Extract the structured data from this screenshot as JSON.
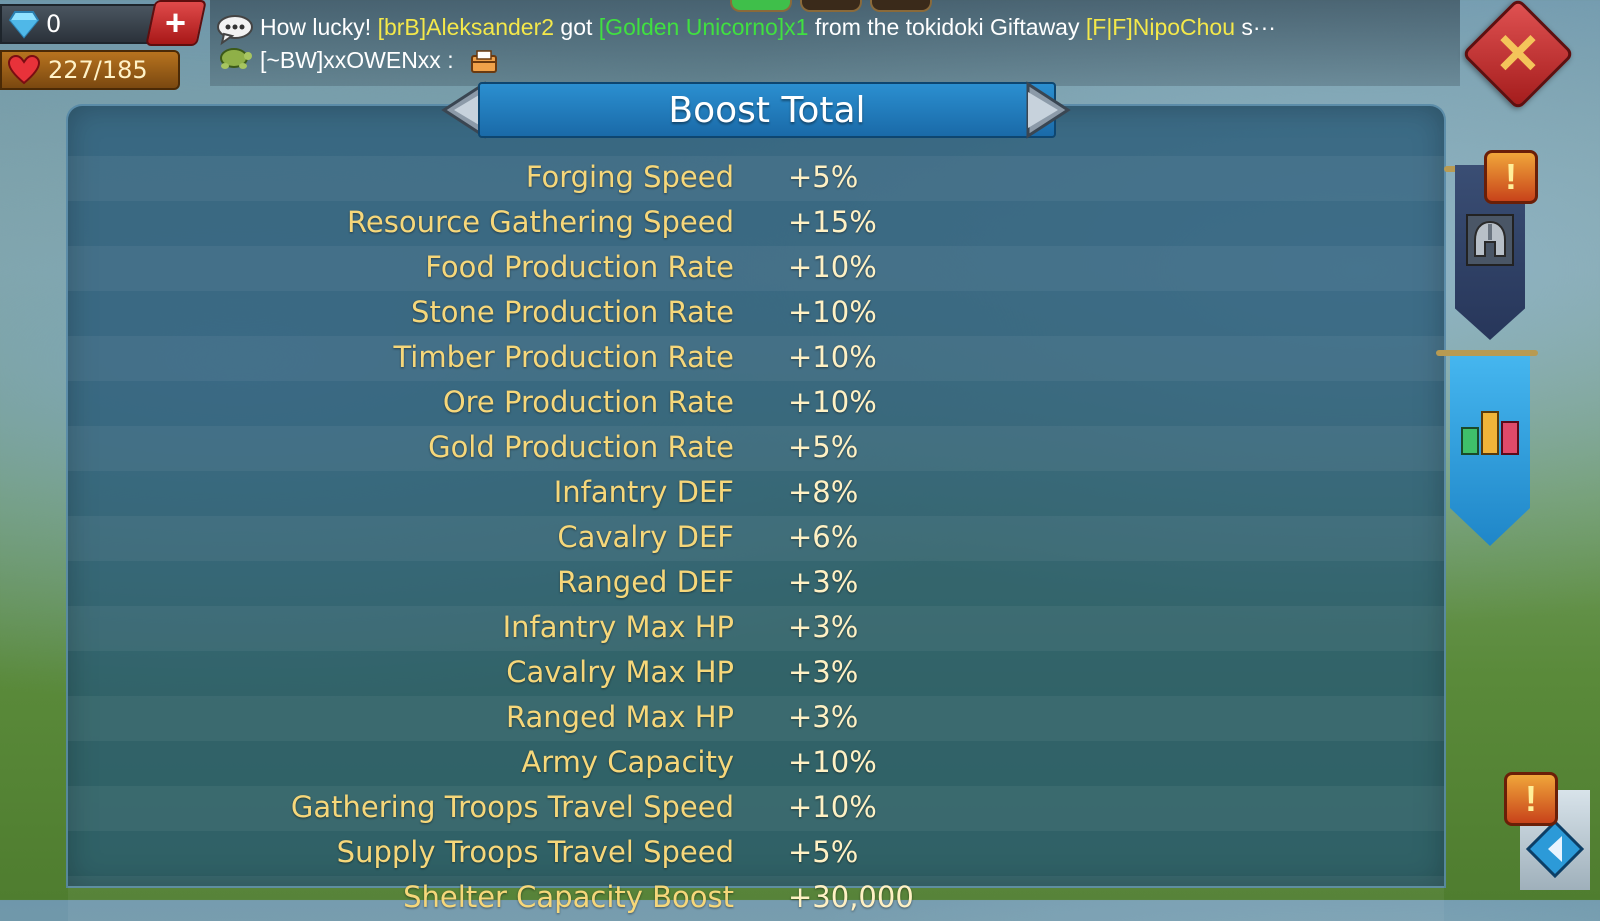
{
  "resources": {
    "gems": "0",
    "stamina": "227/185"
  },
  "chat": {
    "line1": {
      "prefix": "How lucky! ",
      "player": "[brB]Aleksander2",
      "mid1": " got ",
      "item": "[Golden Unicorno]x1",
      "mid2": " from the tokidoki Giftaway ",
      "player2": "[F|F]NipoChou",
      "suffix": " s···"
    },
    "line2": {
      "sender": "[~BW]xxOWENxx :"
    }
  },
  "panel": {
    "title": "Boost Total",
    "rows": [
      {
        "label": "Forging Speed",
        "value": "+5%"
      },
      {
        "label": "Resource Gathering Speed",
        "value": "+15%"
      },
      {
        "label": "Food Production Rate",
        "value": "+10%"
      },
      {
        "label": "Stone Production Rate",
        "value": "+10%"
      },
      {
        "label": "Timber Production Rate",
        "value": "+10%"
      },
      {
        "label": "Ore Production Rate",
        "value": "+10%"
      },
      {
        "label": "Gold Production Rate",
        "value": "+5%"
      },
      {
        "label": "Infantry DEF",
        "value": "+8%"
      },
      {
        "label": "Cavalry DEF",
        "value": "+6%"
      },
      {
        "label": "Ranged DEF",
        "value": "+3%"
      },
      {
        "label": "Infantry Max HP",
        "value": "+3%"
      },
      {
        "label": "Cavalry Max HP",
        "value": "+3%"
      },
      {
        "label": "Ranged Max HP",
        "value": "+3%"
      },
      {
        "label": "Army Capacity",
        "value": "+10%"
      },
      {
        "label": "Gathering Troops Travel Speed",
        "value": "+10%"
      },
      {
        "label": "Supply Troops Travel Speed",
        "value": "+5%"
      },
      {
        "label": "Shelter Capacity Boost",
        "value": "+30,000"
      }
    ]
  },
  "alerts": {
    "badge1": "!",
    "badge2": "!"
  },
  "colors": {
    "label_gold": "#f6d77a",
    "value_cream": "#fff1c4",
    "panel_blue": "#26587a",
    "title_blue": "#2b8fd0",
    "chat_yellow": "#f4e84a",
    "chat_green": "#40e040",
    "close_red": "#c42a2a"
  },
  "icons": [
    "gem-icon",
    "plus-icon",
    "heart-icon",
    "chat-bubble-icon",
    "turtle-icon",
    "mail-icon",
    "close-icon",
    "arrow-left-icon",
    "arrow-right-icon",
    "alert-icon",
    "helmet-icon",
    "stats-bars-icon",
    "corner-arrow-icon"
  ]
}
